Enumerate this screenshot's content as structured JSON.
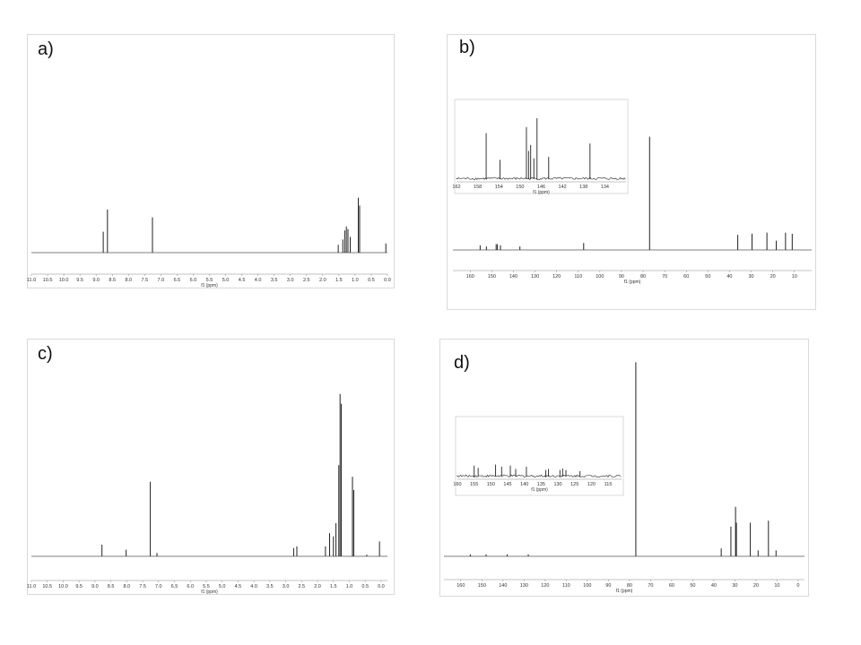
{
  "figure": {
    "panels": [
      {
        "label": "a)",
        "chart_data": {
          "type": "line",
          "title": "",
          "xlabel": "f1 (ppm)",
          "ylabel": "",
          "xlim": [
            11.0,
            0.0
          ],
          "ylim": [
            0,
            1.0
          ],
          "reversed_x": true,
          "ticks": [
            "11.0",
            "10.5",
            "10.0",
            "9.5",
            "9.0",
            "8.5",
            "8.0",
            "7.5",
            "7.0",
            "6.5",
            "6.0",
            "5.5",
            "5.0",
            "4.5",
            "4.0",
            "3.5",
            "3.0",
            "2.5",
            "2.0",
            "1.5",
            "1.0",
            "0.5",
            "0.0"
          ],
          "series": [
            {
              "peaks": [
                {
                  "x": 8.78,
                  "y": 0.16
                },
                {
                  "x": 8.65,
                  "y": 0.33
                },
                {
                  "x": 7.26,
                  "y": 0.27
                },
                {
                  "x": 1.52,
                  "y": 0.06
                },
                {
                  "x": 1.38,
                  "y": 0.1
                },
                {
                  "x": 1.32,
                  "y": 0.17
                },
                {
                  "x": 1.27,
                  "y": 0.2
                },
                {
                  "x": 1.22,
                  "y": 0.18
                },
                {
                  "x": 1.15,
                  "y": 0.12
                },
                {
                  "x": 0.9,
                  "y": 0.42
                },
                {
                  "x": 0.86,
                  "y": 0.36
                },
                {
                  "x": 0.05,
                  "y": 0.07
                }
              ]
            }
          ]
        }
      },
      {
        "label": "b)",
        "chart_data": {
          "type": "line",
          "title": "",
          "xlabel": "f1 (ppm)",
          "ylabel": "",
          "xlim": [
            168,
            2
          ],
          "ylim": [
            0,
            1.0
          ],
          "reversed_x": true,
          "ticks": [
            "160",
            "150",
            "140",
            "130",
            "120",
            "110",
            "100",
            "90",
            "80",
            "70",
            "60",
            "50",
            "40",
            "30",
            "20",
            "10"
          ],
          "series": [
            {
              "peaks": [
                {
                  "x": 155.4,
                  "y": 0.04
                },
                {
                  "x": 152.5,
                  "y": 0.03
                },
                {
                  "x": 148.0,
                  "y": 0.05
                },
                {
                  "x": 147.4,
                  "y": 0.05
                },
                {
                  "x": 146.0,
                  "y": 0.04
                },
                {
                  "x": 137.0,
                  "y": 0.03
                },
                {
                  "x": 107.5,
                  "y": 0.06
                },
                {
                  "x": 77.0,
                  "y": 0.98
                },
                {
                  "x": 36.2,
                  "y": 0.13
                },
                {
                  "x": 29.6,
                  "y": 0.14
                },
                {
                  "x": 22.7,
                  "y": 0.15
                },
                {
                  "x": 18.4,
                  "y": 0.08
                },
                {
                  "x": 14.1,
                  "y": 0.15
                },
                {
                  "x": 11.0,
                  "y": 0.14
                }
              ]
            }
          ],
          "inset": {
            "xlim": [
              162,
              130
            ],
            "ticks": [
              "162",
              "158",
              "154",
              "150",
              "146",
              "142",
              "138",
              "134"
            ],
            "xlabel": "f1 (ppm)",
            "peaks": [
              {
                "x": 156.4,
                "y": 0.62
              },
              {
                "x": 153.8,
                "y": 0.26
              },
              {
                "x": 148.8,
                "y": 0.7
              },
              {
                "x": 148.4,
                "y": 0.38
              },
              {
                "x": 148.0,
                "y": 0.46
              },
              {
                "x": 147.4,
                "y": 0.28
              },
              {
                "x": 146.8,
                "y": 0.82
              },
              {
                "x": 144.6,
                "y": 0.3
              },
              {
                "x": 136.8,
                "y": 0.48
              }
            ]
          }
        }
      },
      {
        "label": "c)",
        "chart_data": {
          "type": "line",
          "title": "",
          "xlabel": "f1 (ppm)",
          "ylabel": "",
          "xlim": [
            11.0,
            -0.2
          ],
          "ylim": [
            0,
            1.0
          ],
          "reversed_x": true,
          "ticks": [
            "11.0",
            "10.5",
            "10.0",
            "9.5",
            "9.0",
            "8.5",
            "8.0",
            "7.5",
            "7.0",
            "6.5",
            "6.0",
            "5.5",
            "5.0",
            "4.5",
            "4.0",
            "3.5",
            "3.0",
            "2.5",
            "2.0",
            "1.5",
            "1.0",
            "0.5",
            "0.0"
          ],
          "series": [
            {
              "peaks": [
                {
                  "x": 8.78,
                  "y": 0.07
                },
                {
                  "x": 8.02,
                  "y": 0.04
                },
                {
                  "x": 7.26,
                  "y": 0.45
                },
                {
                  "x": 7.05,
                  "y": 0.02
                },
                {
                  "x": 2.75,
                  "y": 0.05
                },
                {
                  "x": 2.65,
                  "y": 0.06
                },
                {
                  "x": 1.75,
                  "y": 0.06
                },
                {
                  "x": 1.62,
                  "y": 0.14
                },
                {
                  "x": 1.5,
                  "y": 0.12
                },
                {
                  "x": 1.42,
                  "y": 0.2
                },
                {
                  "x": 1.33,
                  "y": 0.55
                },
                {
                  "x": 1.29,
                  "y": 0.98
                },
                {
                  "x": 1.25,
                  "y": 0.92
                },
                {
                  "x": 0.9,
                  "y": 0.48
                },
                {
                  "x": 0.86,
                  "y": 0.4
                },
                {
                  "x": 0.45,
                  "y": 0.01
                },
                {
                  "x": 0.05,
                  "y": 0.09
                }
              ]
            }
          ]
        }
      },
      {
        "label": "d)",
        "chart_data": {
          "type": "line",
          "title": "",
          "xlabel": "f1 (ppm)",
          "ylabel": "",
          "xlim": [
            168,
            -3
          ],
          "ylim": [
            0,
            1.0
          ],
          "reversed_x": true,
          "ticks": [
            "160",
            "150",
            "140",
            "130",
            "120",
            "110",
            "100",
            "90",
            "80",
            "70",
            "60",
            "50",
            "40",
            "30",
            "20",
            "10",
            "0"
          ],
          "series": [
            {
              "peaks": [
                {
                  "x": 155.5,
                  "y": 0.01
                },
                {
                  "x": 148.0,
                  "y": 0.01
                },
                {
                  "x": 138.0,
                  "y": 0.01
                },
                {
                  "x": 128.0,
                  "y": 0.01
                },
                {
                  "x": 77.0,
                  "y": 0.98
                },
                {
                  "x": 36.5,
                  "y": 0.04
                },
                {
                  "x": 31.9,
                  "y": 0.15
                },
                {
                  "x": 29.7,
                  "y": 0.25
                },
                {
                  "x": 29.3,
                  "y": 0.17
                },
                {
                  "x": 22.7,
                  "y": 0.17
                },
                {
                  "x": 19.0,
                  "y": 0.03
                },
                {
                  "x": 14.1,
                  "y": 0.18
                },
                {
                  "x": 10.5,
                  "y": 0.03
                }
              ]
            }
          ],
          "inset": {
            "xlim": [
              160,
              111
            ],
            "ticks": [
              "160",
              "155",
              "150",
              "145",
              "140",
              "135",
              "130",
              "125",
              "120",
              "115"
            ],
            "xlabel": "f1 (ppm)",
            "peaks": [
              {
                "x": 155.0,
                "y": 0.2
              },
              {
                "x": 153.8,
                "y": 0.16
              },
              {
                "x": 148.6,
                "y": 0.22
              },
              {
                "x": 146.8,
                "y": 0.18
              },
              {
                "x": 144.2,
                "y": 0.2
              },
              {
                "x": 142.6,
                "y": 0.14
              },
              {
                "x": 139.4,
                "y": 0.18
              },
              {
                "x": 133.6,
                "y": 0.12
              },
              {
                "x": 132.8,
                "y": 0.14
              },
              {
                "x": 129.4,
                "y": 0.12
              },
              {
                "x": 128.6,
                "y": 0.15
              },
              {
                "x": 127.6,
                "y": 0.12
              },
              {
                "x": 123.4,
                "y": 0.1
              }
            ]
          }
        }
      }
    ]
  }
}
